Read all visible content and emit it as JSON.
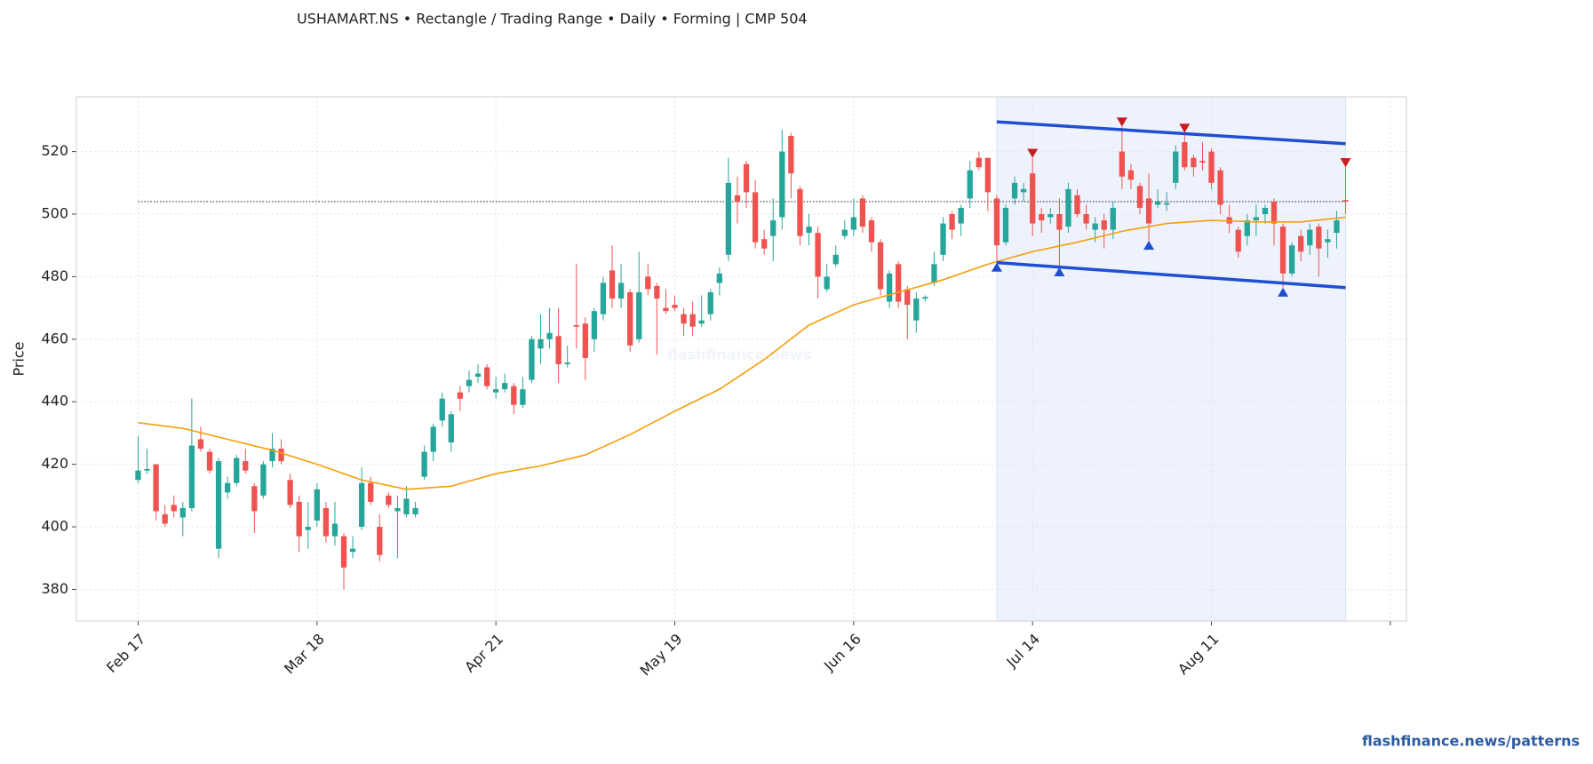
{
  "chart_data": {
    "type": "candlestick",
    "title": "USHAMART.NS  •  Rectangle / Trading Range  •  Daily  •  Forming  |  CMP 504",
    "ylabel": "Price",
    "watermark": "flashfinance.news",
    "footer": "flashfinance.news/patterns",
    "up_color": "#26a69a",
    "down_color": "#ef5350",
    "xlim": [
      -6.9,
      141.8
    ],
    "ylim": [
      369.9,
      537.5
    ],
    "xticks": [
      {
        "value": 0,
        "label": "Feb 17"
      },
      {
        "value": 20,
        "label": "Mar 18"
      },
      {
        "value": 40,
        "label": "Apr 21"
      },
      {
        "value": 60,
        "label": "May 19"
      },
      {
        "value": 80,
        "label": "Jun 16"
      },
      {
        "value": 100,
        "label": "Jul 14"
      },
      {
        "value": 120,
        "label": "Aug 11"
      },
      {
        "value": 140,
        "label": null
      }
    ],
    "yticks": [
      380,
      400,
      420,
      440,
      460,
      480,
      500,
      520
    ],
    "grid": true,
    "candles": [
      [
        415,
        429,
        414,
        418
      ],
      [
        418,
        425,
        417,
        418.5
      ],
      [
        420,
        420,
        402,
        405
      ],
      [
        404,
        407,
        400,
        401
      ],
      [
        407,
        410,
        403,
        405
      ],
      [
        403,
        408,
        397,
        406
      ],
      [
        406,
        441,
        405,
        426
      ],
      [
        428,
        432,
        424,
        425
      ],
      [
        424,
        425,
        417,
        418
      ],
      [
        393,
        422,
        390,
        421
      ],
      [
        411,
        416,
        409,
        414
      ],
      [
        414,
        423,
        413,
        422
      ],
      [
        421,
        425,
        417,
        418
      ],
      [
        413,
        414,
        398,
        405
      ],
      [
        410,
        421,
        409,
        420
      ],
      [
        421,
        430,
        419,
        425
      ],
      [
        425,
        428,
        420,
        421
      ],
      [
        415,
        417,
        406,
        407
      ],
      [
        408,
        410,
        392,
        397
      ],
      [
        399,
        408,
        393,
        400
      ],
      [
        402,
        414,
        400,
        412
      ],
      [
        406,
        408,
        395,
        397
      ],
      [
        397,
        408,
        394,
        401
      ],
      [
        397,
        398,
        380,
        387
      ],
      [
        392,
        397,
        390,
        393
      ],
      [
        400,
        419,
        399,
        414
      ],
      [
        414,
        416,
        407,
        408
      ],
      [
        400,
        404,
        389,
        391
      ],
      [
        410,
        411,
        406,
        407
      ],
      [
        405,
        410,
        390,
        406
      ],
      [
        404,
        413,
        403,
        409
      ],
      [
        404,
        408,
        403,
        406
      ],
      [
        416,
        426,
        415,
        424
      ],
      [
        424,
        433,
        421,
        432
      ],
      [
        434,
        443,
        432,
        441
      ],
      [
        427,
        437,
        424,
        436
      ],
      [
        443,
        445,
        437,
        441
      ],
      [
        445,
        450,
        443,
        447
      ],
      [
        448,
        452,
        446,
        449
      ],
      [
        451,
        452,
        444,
        445
      ],
      [
        443,
        448,
        441,
        444
      ],
      [
        444,
        449,
        443,
        446
      ],
      [
        445,
        446,
        436,
        439
      ],
      [
        439,
        448,
        438,
        444
      ],
      [
        447,
        461,
        446,
        460
      ],
      [
        457,
        468,
        452,
        460
      ],
      [
        460,
        470,
        457,
        462
      ],
      [
        461,
        470,
        446,
        452
      ],
      [
        452,
        458,
        451,
        452.5
      ],
      [
        464.5,
        484,
        457,
        464
      ],
      [
        465,
        467,
        447,
        454
      ],
      [
        460,
        470,
        456,
        469
      ],
      [
        468,
        480,
        466,
        478
      ],
      [
        482,
        490,
        470,
        473
      ],
      [
        473,
        484,
        470,
        478
      ],
      [
        475,
        476,
        456,
        458
      ],
      [
        460,
        488,
        459,
        475
      ],
      [
        480,
        484,
        474,
        476
      ],
      [
        477,
        478,
        455,
        473
      ],
      [
        470,
        476,
        468,
        469
      ],
      [
        471,
        474,
        469,
        470
      ],
      [
        468,
        470,
        461,
        465
      ],
      [
        468,
        472,
        461,
        464
      ],
      [
        465,
        474,
        464,
        466
      ],
      [
        468,
        476,
        466,
        475
      ],
      [
        478,
        483,
        474,
        481
      ],
      [
        487,
        518,
        485,
        510
      ],
      [
        506,
        512,
        497,
        504
      ],
      [
        516,
        517,
        502,
        507
      ],
      [
        507,
        511,
        489,
        491
      ],
      [
        492,
        495,
        487,
        489
      ],
      [
        493,
        505,
        485,
        498
      ],
      [
        499,
        527,
        495,
        520
      ],
      [
        525,
        526,
        505,
        513
      ],
      [
        508,
        509,
        490,
        493
      ],
      [
        494,
        500,
        490,
        496
      ],
      [
        494,
        496,
        473,
        480
      ],
      [
        476,
        484,
        475,
        480
      ],
      [
        484,
        490,
        483,
        487
      ],
      [
        493,
        498,
        492,
        495
      ],
      [
        495,
        505,
        493,
        499
      ],
      [
        505,
        506,
        494,
        496
      ],
      [
        498,
        499,
        488,
        491
      ],
      [
        491,
        492,
        474,
        476
      ],
      [
        472,
        482,
        470,
        481
      ],
      [
        484,
        485,
        470,
        472
      ],
      [
        476,
        477,
        460,
        471
      ],
      [
        466,
        475,
        462,
        473
      ],
      [
        473,
        474,
        472,
        473.5
      ],
      [
        478,
        488,
        477,
        484
      ],
      [
        487,
        499,
        485,
        497
      ],
      [
        500,
        501,
        492,
        495
      ],
      [
        497,
        503,
        493,
        502
      ],
      [
        505,
        517,
        502,
        514
      ],
      [
        518,
        520,
        514,
        515
      ],
      [
        518,
        518,
        501,
        507
      ],
      [
        505,
        506,
        484.5,
        490
      ],
      [
        491,
        503,
        490,
        502
      ],
      [
        505,
        512,
        503,
        510
      ],
      [
        507,
        510,
        504,
        508
      ],
      [
        513,
        518,
        493,
        497
      ],
      [
        500,
        502,
        494,
        498
      ],
      [
        499,
        502,
        497,
        500
      ],
      [
        500,
        505,
        483,
        495
      ],
      [
        496,
        510,
        494,
        508
      ],
      [
        506,
        508,
        499,
        500
      ],
      [
        500,
        503,
        495,
        497
      ],
      [
        495,
        499,
        491,
        497
      ],
      [
        498,
        500,
        489,
        495
      ],
      [
        495,
        504,
        492,
        502
      ],
      [
        520,
        528,
        508,
        512
      ],
      [
        514,
        516,
        508,
        511
      ],
      [
        509,
        510,
        500,
        502
      ],
      [
        505,
        513,
        491.5,
        497
      ],
      [
        503,
        508,
        502,
        504
      ],
      [
        503,
        507,
        501,
        503.5
      ],
      [
        510,
        522,
        508,
        520
      ],
      [
        523,
        526,
        514,
        515
      ],
      [
        518,
        519,
        512,
        515
      ],
      [
        517,
        523,
        514,
        516.5
      ],
      [
        520,
        521,
        508,
        510
      ],
      [
        514,
        515,
        500,
        503
      ],
      [
        499,
        503,
        494,
        497
      ],
      [
        495,
        496,
        486,
        488
      ],
      [
        493,
        500,
        490,
        498
      ],
      [
        498,
        503,
        493,
        499
      ],
      [
        500,
        503,
        497,
        502
      ],
      [
        504,
        505,
        490,
        497
      ],
      [
        496,
        497,
        476.5,
        481
      ],
      [
        481,
        491,
        480,
        490
      ],
      [
        493,
        495,
        485,
        488
      ],
      [
        490,
        497,
        487,
        495
      ],
      [
        496,
        497,
        480,
        489
      ],
      [
        491,
        495,
        486,
        492
      ],
      [
        494,
        501,
        489,
        498
      ],
      [
        504.5,
        515,
        500,
        504
      ]
    ],
    "moving_average": {
      "color": "#f59e0b",
      "x": [
        0,
        5,
        10,
        15,
        20,
        25,
        30,
        35,
        40,
        45,
        50,
        55,
        60,
        65,
        70,
        75,
        80,
        85,
        90,
        95,
        100,
        105,
        110,
        115,
        120,
        125,
        130,
        135
      ],
      "values": [
        433.3,
        431.5,
        428,
        424.5,
        420,
        415,
        412,
        413,
        417,
        419.5,
        423,
        429.5,
        437,
        444,
        453.5,
        464.5,
        471,
        475,
        479,
        484,
        488,
        491,
        494.5,
        497,
        498,
        497.5,
        497.5,
        499
      ]
    },
    "cmp": {
      "value": 504,
      "x": [
        0,
        135
      ],
      "color": "#333333"
    },
    "range_region": {
      "x": [
        96,
        135
      ],
      "color": "#eef2fd"
    },
    "resistance": {
      "color": "#1f4fd1",
      "x": [
        96,
        135
      ],
      "values": [
        529.5,
        522.5
      ]
    },
    "support": {
      "color": "#1f4fd1",
      "x": [
        96,
        135
      ],
      "values": [
        484.5,
        476.5
      ]
    },
    "swing_highs": {
      "color": "#c81e1e",
      "x": [
        100,
        110,
        117,
        135
      ],
      "values": [
        518,
        528,
        526,
        515
      ]
    },
    "swing_lows": {
      "color": "#1f4fd1",
      "x": [
        96,
        103,
        113,
        128
      ],
      "values": [
        484.5,
        483,
        491.5,
        476.5
      ]
    }
  }
}
